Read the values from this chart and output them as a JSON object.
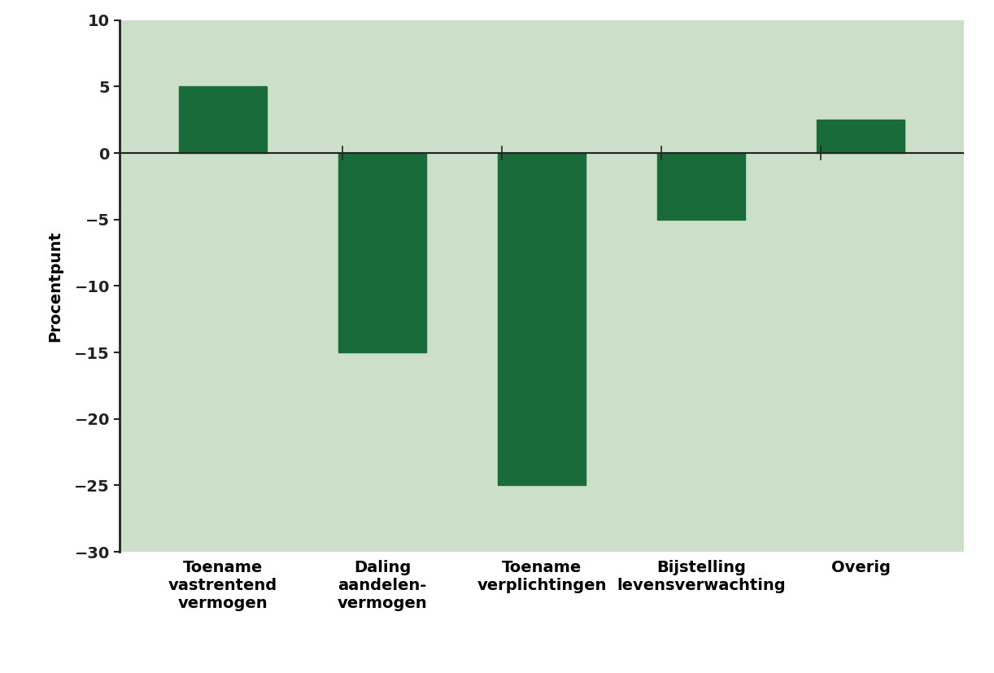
{
  "categories": [
    "Toename\nvastrentend\nvermogen",
    "Daling\naandelen-\nvermogen",
    "Toename\nverplichtingen",
    "Bijstelling\nlevensverwachting",
    "Overig"
  ],
  "values": [
    5,
    -15,
    -25,
    -5,
    2.5
  ],
  "bar_color": "#1a6b3a",
  "bar_edge_color": "#1a6b3a",
  "plot_bg_color": "#ccdfc8",
  "fig_bg_color": "#ffffff",
  "ylabel": "Procentpunt",
  "ylim": [
    -30,
    10
  ],
  "yticks": [
    -30,
    -25,
    -20,
    -15,
    -10,
    -5,
    0,
    5,
    10
  ],
  "ytick_labels": [
    "−30",
    "−25",
    "−20",
    "−15",
    "−10",
    "−5",
    "0",
    "5",
    "10"
  ],
  "bar_width": 0.55,
  "zero_line_color": "#222222",
  "left_spine_color": "#222222",
  "tick_color": "#222222",
  "font_size": 14,
  "ylabel_fontsize": 14,
  "tick_label_fontsize": 14,
  "xtick_fontsize": 14
}
